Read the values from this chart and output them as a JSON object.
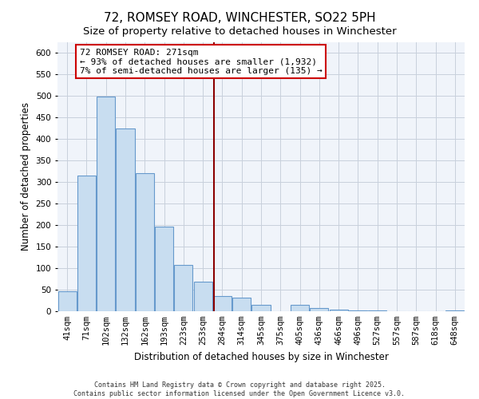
{
  "title": "72, ROMSEY ROAD, WINCHESTER, SO22 5PH",
  "subtitle": "Size of property relative to detached houses in Winchester",
  "xlabel": "Distribution of detached houses by size in Winchester",
  "ylabel": "Number of detached properties",
  "bar_color": "#c8ddf0",
  "bar_edge_color": "#6699cc",
  "categories": [
    "41sqm",
    "71sqm",
    "102sqm",
    "132sqm",
    "162sqm",
    "193sqm",
    "223sqm",
    "253sqm",
    "284sqm",
    "314sqm",
    "345sqm",
    "375sqm",
    "405sqm",
    "436sqm",
    "466sqm",
    "496sqm",
    "527sqm",
    "557sqm",
    "587sqm",
    "618sqm",
    "648sqm"
  ],
  "values": [
    46,
    314,
    499,
    424,
    320,
    196,
    107,
    69,
    36,
    32,
    14,
    0,
    14,
    8,
    3,
    2,
    1,
    0,
    0,
    0,
    1
  ],
  "ylim": [
    0,
    625
  ],
  "yticks": [
    0,
    50,
    100,
    150,
    200,
    250,
    300,
    350,
    400,
    450,
    500,
    550,
    600
  ],
  "vline_x": 7.55,
  "vline_color": "#8b0000",
  "annotation_title": "72 ROMSEY ROAD: 271sqm",
  "annotation_line1": "← 93% of detached houses are smaller (1,932)",
  "annotation_line2": "7% of semi-detached houses are larger (135) →",
  "footer1": "Contains HM Land Registry data © Crown copyright and database right 2025.",
  "footer2": "Contains public sector information licensed under the Open Government Licence v3.0.",
  "bg_color": "#f0f4fa",
  "grid_color": "#c8d0dc",
  "title_fontsize": 11,
  "subtitle_fontsize": 9.5,
  "axis_label_fontsize": 8.5,
  "tick_fontsize": 7.5,
  "ann_fontsize": 8,
  "footer_fontsize": 6
}
